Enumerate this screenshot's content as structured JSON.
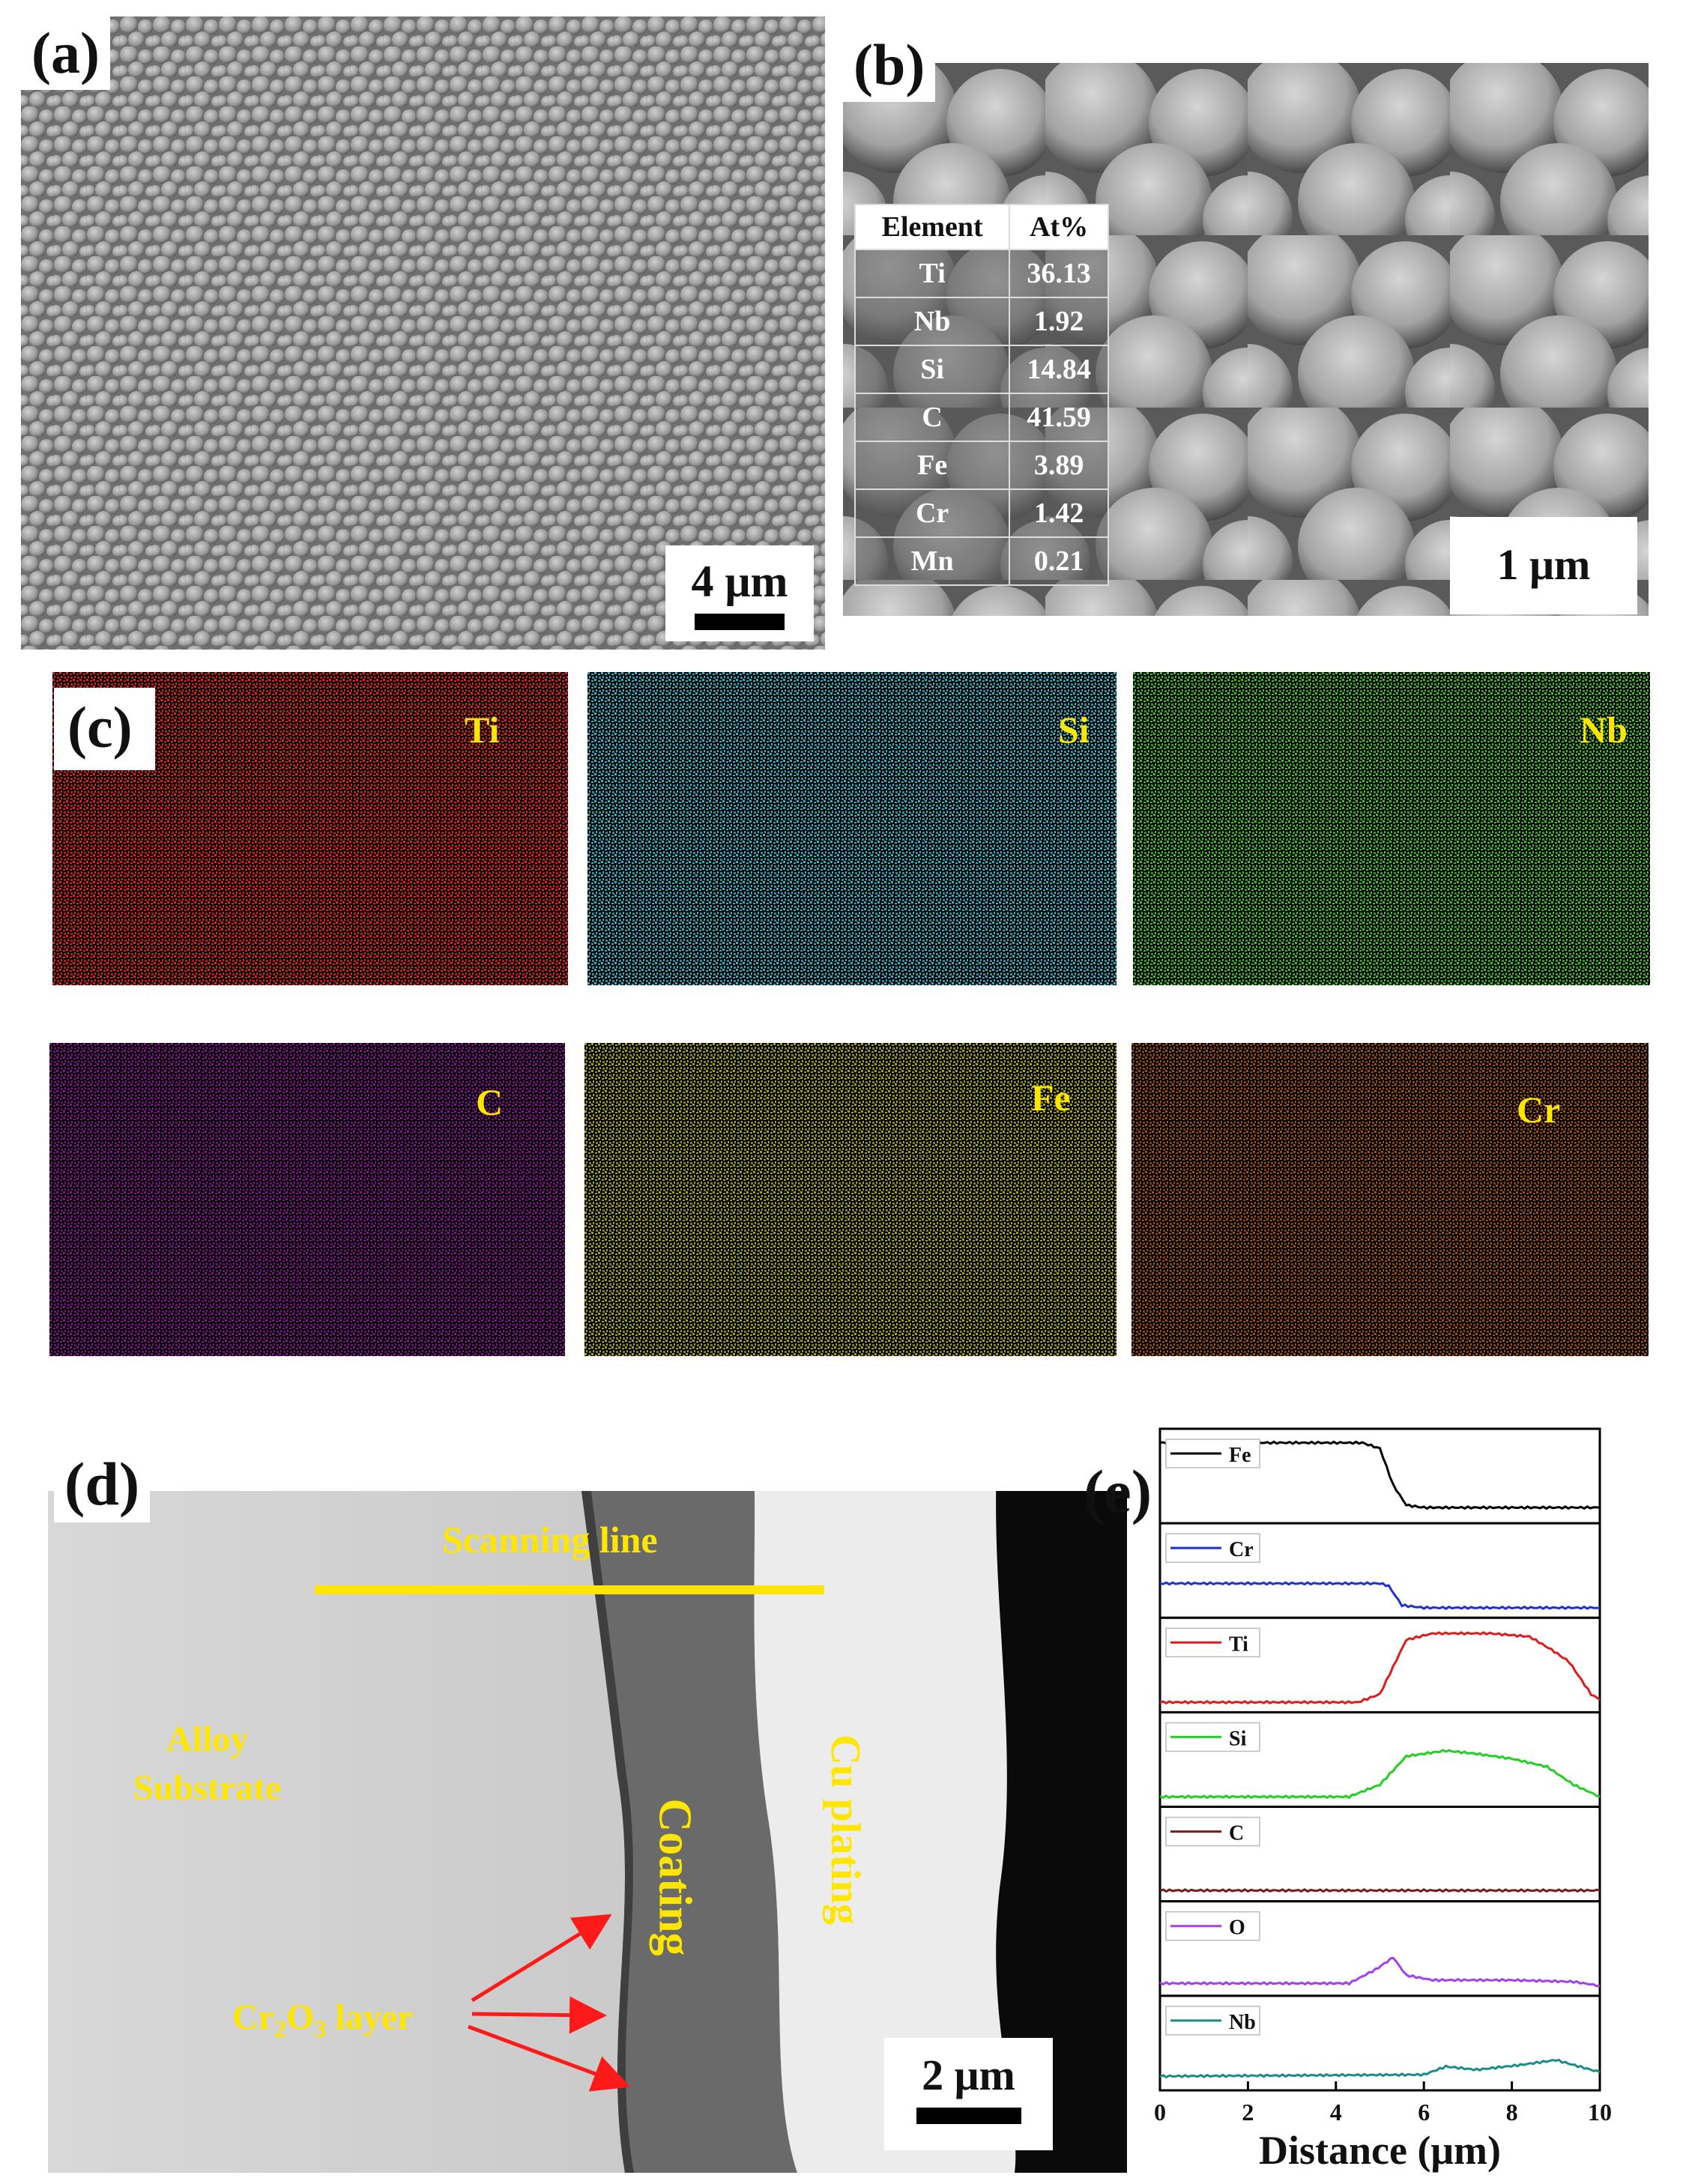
{
  "panels": {
    "a": {
      "label": "(a)",
      "scale_bar": "4 μm"
    },
    "b": {
      "label": "(b)",
      "scale_bar": "1 μm",
      "table": {
        "headers": [
          "Element",
          "At%"
        ],
        "rows": [
          [
            "Ti",
            "36.13"
          ],
          [
            "Nb",
            "1.92"
          ],
          [
            "Si",
            "14.84"
          ],
          [
            "C",
            "41.59"
          ],
          [
            "Fe",
            "3.89"
          ],
          [
            "Cr",
            "1.42"
          ],
          [
            "Mn",
            "0.21"
          ]
        ]
      }
    },
    "c": {
      "label": "(c)",
      "maps": [
        {
          "element": "Ti",
          "color": "#e3231b"
        },
        {
          "element": "Si",
          "color": "#2fb3c4"
        },
        {
          "element": "Nb",
          "color": "#3dbf25"
        },
        {
          "element": "C",
          "color": "#b81bc7"
        },
        {
          "element": "Fe",
          "color": "#e6e61c"
        },
        {
          "element": "Cr",
          "color": "#e0731c"
        }
      ]
    },
    "d": {
      "label": "(d)",
      "scanning_line": "Scanning line",
      "alloy_line1": "Alloy",
      "alloy_line2": "Substrate",
      "coating": "Coating",
      "cu_plating": "Cu plating",
      "oxide_prefix": "Cr",
      "oxide_sub1": "2",
      "oxide_mid": "O",
      "oxide_sub2": "3",
      "oxide_suffix": " layer",
      "scale_bar": "2 μm"
    },
    "e": {
      "label": "(e)",
      "xlabel": "Distance (μm)",
      "xticks": [
        "0",
        "2",
        "4",
        "6",
        "8",
        "10"
      ]
    }
  },
  "chart_data": {
    "type": "line",
    "xlabel": "Distance (μm)",
    "xlim": [
      0,
      10
    ],
    "series": [
      {
        "name": "Fe",
        "color": "#000000",
        "x": [
          0,
          4.6,
          5.0,
          5.3,
          5.6,
          6.0,
          10
        ],
        "y": [
          0.92,
          0.92,
          0.85,
          0.4,
          0.15,
          0.12,
          0.12
        ]
      },
      {
        "name": "Cr",
        "color": "#1f2fd6",
        "x": [
          0,
          5.0,
          5.2,
          5.5,
          6.0,
          10
        ],
        "y": [
          0.35,
          0.35,
          0.32,
          0.08,
          0.05,
          0.05
        ]
      },
      {
        "name": "Ti",
        "color": "#e01b1b",
        "x": [
          0,
          4.5,
          5.0,
          5.6,
          6.2,
          7.5,
          8.4,
          8.9,
          9.3,
          9.8,
          10
        ],
        "y": [
          0.05,
          0.05,
          0.15,
          0.82,
          0.9,
          0.9,
          0.86,
          0.7,
          0.55,
          0.15,
          0.08
        ]
      },
      {
        "name": "Si",
        "color": "#22d022",
        "x": [
          0,
          4.3,
          5.0,
          5.6,
          6.5,
          7.2,
          8.0,
          8.8,
          9.4,
          10
        ],
        "y": [
          0.05,
          0.05,
          0.2,
          0.55,
          0.62,
          0.58,
          0.52,
          0.42,
          0.2,
          0.05
        ]
      },
      {
        "name": "C",
        "color": "#7b1a1a",
        "x": [
          0,
          10
        ],
        "y": [
          0.06,
          0.06
        ]
      },
      {
        "name": "O",
        "color": "#a43ff0",
        "x": [
          0,
          4.3,
          4.9,
          5.3,
          5.6,
          6.2,
          8.0,
          9.4,
          10
        ],
        "y": [
          0.08,
          0.08,
          0.25,
          0.4,
          0.18,
          0.12,
          0.12,
          0.1,
          0.05
        ]
      },
      {
        "name": "Nb",
        "color": "#1a8c88",
        "x": [
          0,
          6.0,
          6.5,
          7.2,
          8.2,
          9.0,
          10
        ],
        "y": [
          0.1,
          0.12,
          0.22,
          0.18,
          0.24,
          0.3,
          0.15
        ]
      }
    ]
  }
}
